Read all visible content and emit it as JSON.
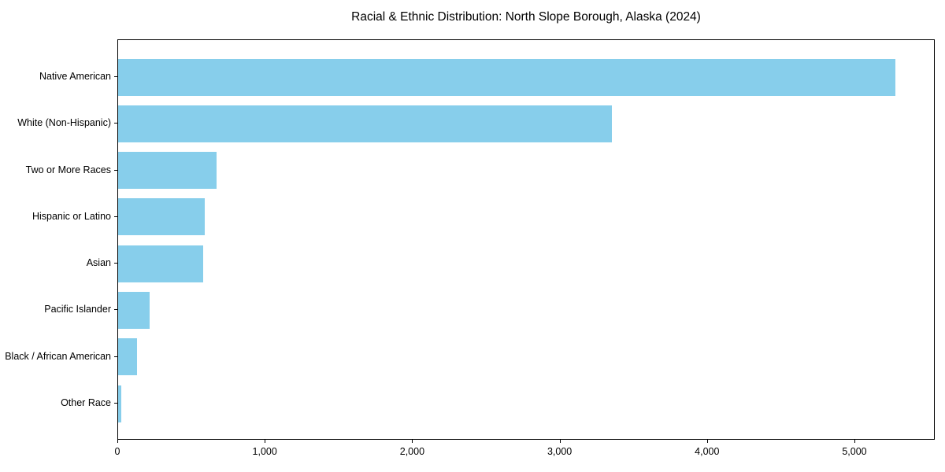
{
  "chart_data": {
    "type": "bar",
    "orientation": "horizontal",
    "title": "Racial & Ethnic Distribution: North Slope Borough, Alaska (2024)",
    "categories": [
      "Native American",
      "White (Non-Hispanic)",
      "Two or More Races",
      "Hispanic or Latino",
      "Asian",
      "Pacific Islander",
      "Black / African American",
      "Other Race"
    ],
    "values": [
      5275,
      3350,
      670,
      585,
      575,
      215,
      130,
      20
    ],
    "xlabel": "",
    "ylabel": "",
    "xlim": [
      0,
      5545
    ],
    "x_ticks": [
      0,
      1000,
      2000,
      3000,
      4000,
      5000
    ],
    "x_tick_labels": [
      "0",
      "1,000",
      "2,000",
      "3,000",
      "4,000",
      "5,000"
    ],
    "bar_color": "#87CEEB",
    "axis_color": "#000000",
    "grid": false,
    "legend": null
  }
}
